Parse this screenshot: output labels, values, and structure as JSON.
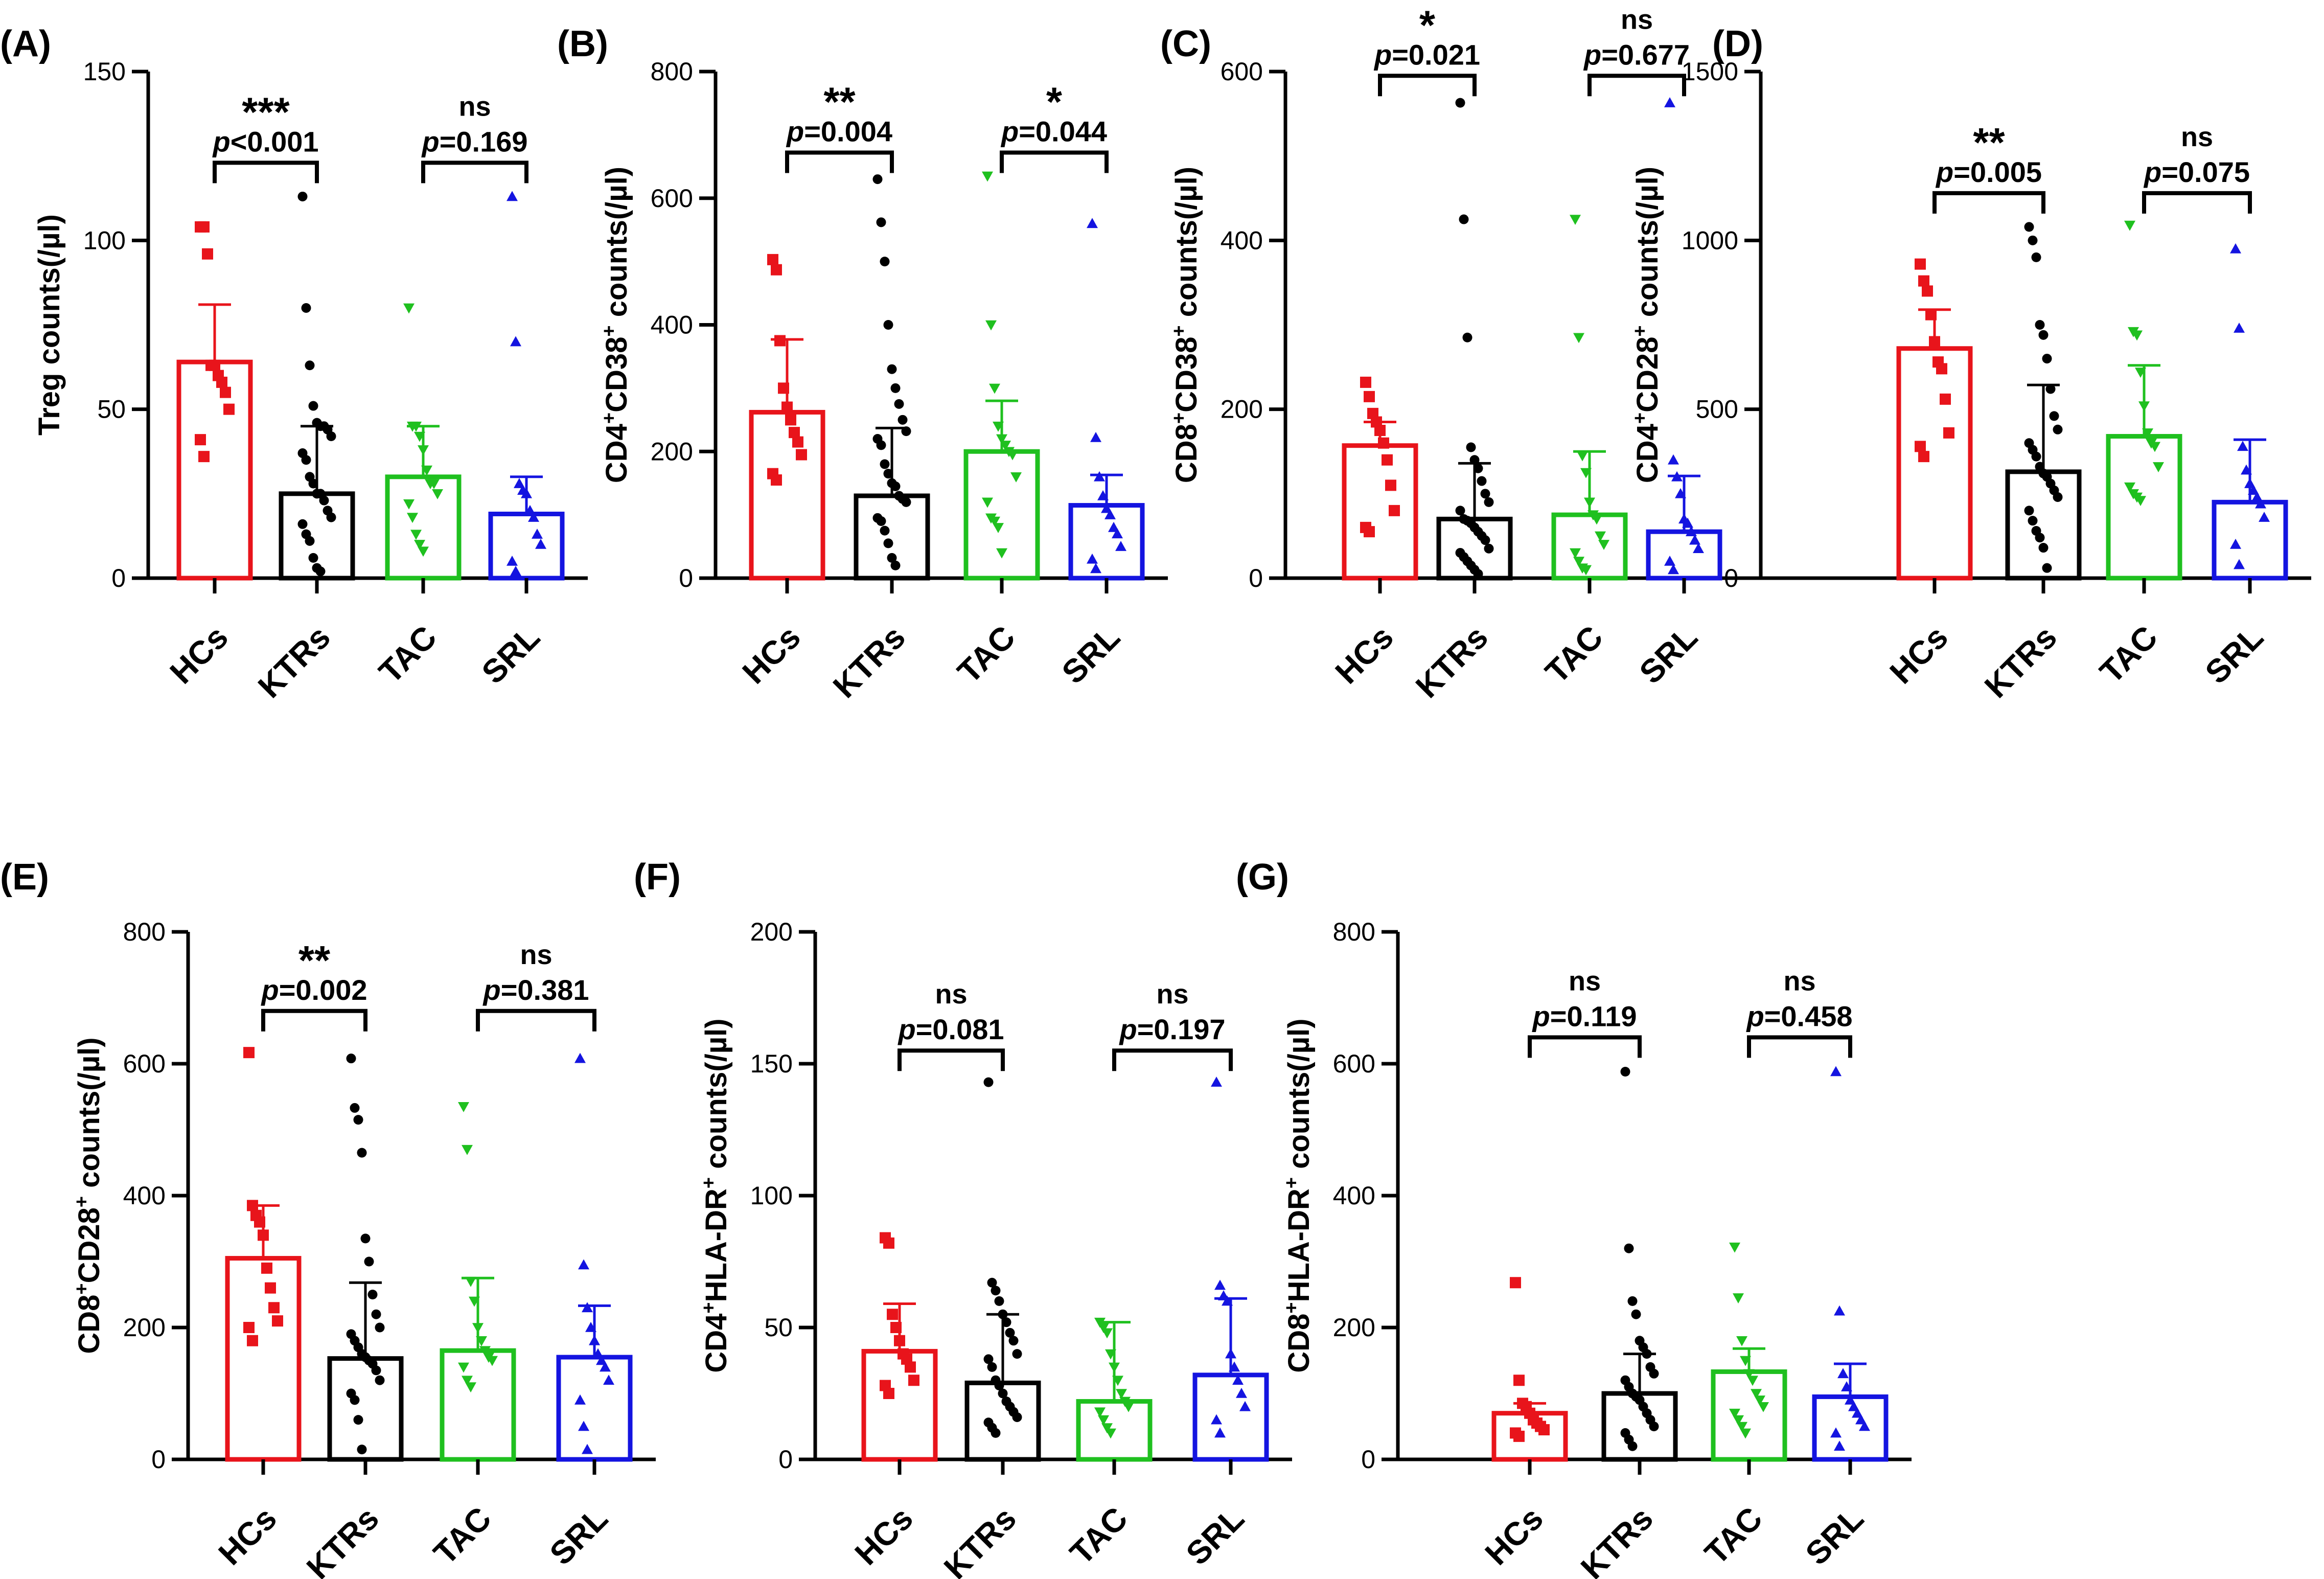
{
  "colors": {
    "HCs": "#e8141b",
    "KTRs": "#000000",
    "TAC": "#1fc01f",
    "SRL": "#1414e0"
  },
  "chart_data": [
    {
      "type": "bar",
      "panel": "(A)",
      "ylabel": "Treg counts(/µl)",
      "categories": [
        "HCs",
        "KTRs",
        "TAC",
        "SRL"
      ],
      "ylim": [
        0,
        150
      ],
      "yticks": [
        "0",
        "50",
        "100",
        "150"
      ],
      "means": [
        64,
        25,
        30,
        19
      ],
      "sd_upper": [
        81,
        45,
        45,
        30
      ],
      "points": [
        [
          104,
          104,
          96,
          63,
          63,
          60,
          58,
          55,
          50,
          41,
          36
        ],
        [
          113,
          80,
          63,
          51,
          46,
          45,
          45,
          44,
          42,
          37,
          35,
          30,
          28,
          25,
          25,
          23,
          20,
          18,
          16,
          13,
          11,
          6,
          3,
          2
        ],
        [
          80,
          45,
          45,
          42,
          38,
          32,
          28,
          28,
          25,
          22,
          18,
          13,
          10,
          8
        ],
        [
          113,
          70,
          28,
          26,
          25,
          20,
          18,
          13,
          10,
          5,
          2
        ]
      ],
      "markers": [
        "square",
        "circle",
        "tri-down",
        "tri-up"
      ],
      "comparisons": [
        {
          "groups": [
            "HCs",
            "KTRs"
          ],
          "sig": "***",
          "p": "<0.001",
          "y": 123
        },
        {
          "groups": [
            "TAC",
            "SRL"
          ],
          "sig": "ns",
          "p": "=0.169",
          "y": 123
        }
      ]
    },
    {
      "type": "bar",
      "panel": "(B)",
      "ylabel": "CD4⁺CD38⁺ counts(/µl)",
      "ylabel_parts": [
        "CD4",
        "+",
        "CD38",
        "+",
        " counts(/µl)"
      ],
      "categories": [
        "HCs",
        "KTRs",
        "TAC",
        "SRL"
      ],
      "ylim": [
        0,
        800
      ],
      "yticks": [
        "0",
        "200",
        "400",
        "600",
        "800"
      ],
      "means": [
        262,
        130,
        200,
        115
      ],
      "sd_upper": [
        377,
        237,
        280,
        163
      ],
      "points": [
        [
          503,
          487,
          375,
          300,
          270,
          250,
          230,
          215,
          195,
          165,
          155
        ],
        [
          630,
          562,
          500,
          400,
          330,
          300,
          275,
          250,
          232,
          220,
          210,
          180,
          165,
          150,
          145,
          130,
          125,
          120,
          95,
          90,
          75,
          55,
          32,
          20
        ],
        [
          635,
          400,
          300,
          240,
          220,
          210,
          200,
          195,
          160,
          120,
          95,
          90,
          80,
          40
        ],
        [
          560,
          222,
          160,
          130,
          110,
          100,
          80,
          70,
          50,
          30,
          15
        ]
      ],
      "markers": [
        "square",
        "circle",
        "tri-down",
        "tri-up"
      ],
      "comparisons": [
        {
          "groups": [
            "HCs",
            "KTRs"
          ],
          "sig": "**",
          "p": "=0.004",
          "y": 672
        },
        {
          "groups": [
            "TAC",
            "SRL"
          ],
          "sig": "*",
          "p": "=0.044",
          "y": 672
        }
      ]
    },
    {
      "type": "bar",
      "panel": "(C)",
      "ylabel": "CD8⁺CD38⁺ counts(/µl)",
      "ylabel_parts": [
        "CD8",
        "+",
        "CD38",
        "+",
        " counts(/µl)"
      ],
      "categories": [
        "HCs",
        "KTRs",
        "TAC",
        "SRL"
      ],
      "ylim": [
        0,
        600
      ],
      "yticks": [
        "0",
        "200",
        "400",
        "600"
      ],
      "means": [
        157,
        70,
        75,
        55
      ],
      "sd_upper": [
        185,
        136,
        150,
        121
      ],
      "points": [
        [
          232,
          215,
          195,
          185,
          175,
          160,
          140,
          110,
          80,
          60,
          55
        ],
        [
          563,
          425,
          285,
          155,
          140,
          130,
          115,
          100,
          90,
          80,
          70,
          68,
          65,
          60,
          55,
          50,
          45,
          35,
          30,
          25,
          20,
          15,
          10,
          5
        ],
        [
          425,
          285,
          145,
          125,
          90,
          75,
          70,
          50,
          40,
          30,
          20,
          12,
          10
        ],
        [
          563,
          140,
          120,
          100,
          70,
          65,
          55,
          45,
          35,
          20,
          10
        ]
      ],
      "markers": [
        "square",
        "circle",
        "tri-down",
        "tri-up"
      ],
      "comparisons": [
        {
          "groups": [
            "HCs",
            "KTRs"
          ],
          "sig": "*",
          "p": "=0.021",
          "y": 595
        },
        {
          "groups": [
            "TAC",
            "SRL"
          ],
          "sig": "ns",
          "p": "=0.677",
          "y": 595
        }
      ]
    },
    {
      "type": "bar",
      "panel": "(D)",
      "ylabel": "CD4⁺CD28⁺ counts(/µl)",
      "ylabel_parts": [
        "CD4",
        "+",
        "CD28",
        "+",
        " counts(/µl)"
      ],
      "categories": [
        "HCs",
        "KTRs",
        "TAC",
        "SRL"
      ],
      "ylim": [
        0,
        1500
      ],
      "yticks": [
        "0",
        "500",
        "1000",
        "1500"
      ],
      "means": [
        680,
        315,
        420,
        225
      ],
      "sd_upper": [
        795,
        572,
        630,
        410
      ],
      "points": [
        [
          930,
          880,
          850,
          780,
          700,
          640,
          620,
          530,
          430,
          390,
          360
        ],
        [
          1040,
          1000,
          950,
          750,
          720,
          650,
          560,
          480,
          440,
          400,
          380,
          360,
          330,
          310,
          300,
          280,
          260,
          240,
          200,
          170,
          140,
          120,
          90,
          30
        ],
        [
          1045,
          730,
          720,
          610,
          510,
          430,
          400,
          390,
          330,
          270,
          250,
          240,
          230
        ],
        [
          975,
          740,
          390,
          320,
          280,
          260,
          240,
          220,
          180,
          100,
          40
        ]
      ],
      "markers": [
        "square",
        "circle",
        "tri-down",
        "tri-up"
      ],
      "comparisons": [
        {
          "groups": [
            "HCs",
            "KTRs"
          ],
          "sig": "**",
          "p": "=0.005",
          "y": 1140
        },
        {
          "groups": [
            "TAC",
            "SRL"
          ],
          "sig": "ns",
          "p": "=0.075",
          "y": 1140
        }
      ]
    },
    {
      "type": "bar",
      "panel": "(E)",
      "ylabel": "CD8⁺CD28⁺ counts(/µl)",
      "ylabel_parts": [
        "CD8",
        "+",
        "CD28",
        "+",
        " counts(/µl)"
      ],
      "categories": [
        "HCs",
        "KTRs",
        "TAC",
        "SRL"
      ],
      "ylim": [
        0,
        800
      ],
      "yticks": [
        "0",
        "200",
        "400",
        "600",
        "800"
      ],
      "means": [
        305,
        153,
        165,
        155
      ],
      "sd_upper": [
        385,
        268,
        275,
        233
      ],
      "points": [
        [
          617,
          385,
          370,
          360,
          340,
          290,
          260,
          230,
          210,
          200,
          180
        ],
        [
          608,
          533,
          515,
          465,
          335,
          300,
          250,
          220,
          200,
          190,
          180,
          170,
          160,
          155,
          150,
          145,
          135,
          120,
          100,
          90,
          60,
          15
        ],
        [
          535,
          470,
          270,
          240,
          200,
          180,
          165,
          155,
          150,
          140,
          120,
          110
        ],
        [
          608,
          295,
          230,
          200,
          180,
          160,
          150,
          140,
          120,
          90,
          50,
          15
        ]
      ],
      "markers": [
        "square",
        "circle",
        "tri-down",
        "tri-up"
      ],
      "comparisons": [
        {
          "groups": [
            "HCs",
            "KTRs"
          ],
          "sig": "**",
          "p": "=0.002",
          "y": 680
        },
        {
          "groups": [
            "TAC",
            "SRL"
          ],
          "sig": "ns",
          "p": "=0.381",
          "y": 680
        }
      ]
    },
    {
      "type": "bar",
      "panel": "(F)",
      "ylabel": "CD4⁺HLA-DR⁺ counts(/µl)",
      "ylabel_parts": [
        "CD4",
        "+",
        "HLA-DR",
        "+",
        " counts(/µl)"
      ],
      "categories": [
        "HCs",
        "KTRs",
        "TAC",
        "SRL"
      ],
      "ylim": [
        0,
        200
      ],
      "yticks": [
        "0",
        "50",
        "100",
        "150",
        "200"
      ],
      "means": [
        41,
        29,
        22,
        32
      ],
      "sd_upper": [
        59,
        55,
        52,
        61
      ],
      "points": [
        [
          84,
          82,
          55,
          50,
          45,
          40,
          38,
          35,
          30,
          28,
          25
        ],
        [
          143,
          67,
          64,
          60,
          55,
          52,
          48,
          45,
          40,
          38,
          35,
          30,
          28,
          25,
          22,
          20,
          18,
          16,
          14,
          12,
          10
        ],
        [
          52,
          50,
          48,
          40,
          35,
          30,
          25,
          22,
          20,
          18,
          15,
          12,
          10
        ],
        [
          143,
          66,
          62,
          60,
          40,
          35,
          30,
          25,
          20,
          15,
          10
        ]
      ],
      "markers": [
        "square",
        "circle",
        "tri-down",
        "tri-up"
      ],
      "comparisons": [
        {
          "groups": [
            "HCs",
            "KTRs"
          ],
          "sig": "ns",
          "p": "=0.081",
          "y": 155
        },
        {
          "groups": [
            "TAC",
            "SRL"
          ],
          "sig": "ns",
          "p": "=0.197",
          "y": 155
        }
      ]
    },
    {
      "type": "bar",
      "panel": "(G)",
      "ylabel": "CD8⁺HLA-DR⁺ counts(/µl)",
      "ylabel_parts": [
        "CD8",
        "+",
        "HLA-DR",
        "+",
        " counts(/µl)"
      ],
      "categories": [
        "HCs",
        "KTRs",
        "TAC",
        "SRL"
      ],
      "ylim": [
        0,
        800
      ],
      "yticks": [
        "0",
        "200",
        "400",
        "600",
        "800"
      ],
      "means": [
        70,
        100,
        133,
        95
      ],
      "sd_upper": [
        85,
        160,
        168,
        145
      ],
      "points": [
        [
          268,
          120,
          85,
          80,
          70,
          60,
          55,
          50,
          45,
          40,
          35
        ],
        [
          588,
          320,
          240,
          220,
          180,
          170,
          160,
          140,
          130,
          120,
          110,
          100,
          95,
          90,
          80,
          70,
          60,
          50,
          40,
          30,
          20
        ],
        [
          322,
          245,
          180,
          150,
          130,
          120,
          100,
          90,
          80,
          70,
          60,
          50,
          40
        ],
        [
          588,
          225,
          130,
          110,
          90,
          80,
          70,
          60,
          50,
          40,
          20
        ]
      ],
      "markers": [
        "square",
        "circle",
        "tri-down",
        "tri-up"
      ],
      "comparisons": [
        {
          "groups": [
            "HCs",
            "KTRs"
          ],
          "sig": "ns",
          "p": "=0.119",
          "y": 640
        },
        {
          "groups": [
            "TAC",
            "SRL"
          ],
          "sig": "ns",
          "p": "=0.458",
          "y": 640
        }
      ]
    }
  ]
}
